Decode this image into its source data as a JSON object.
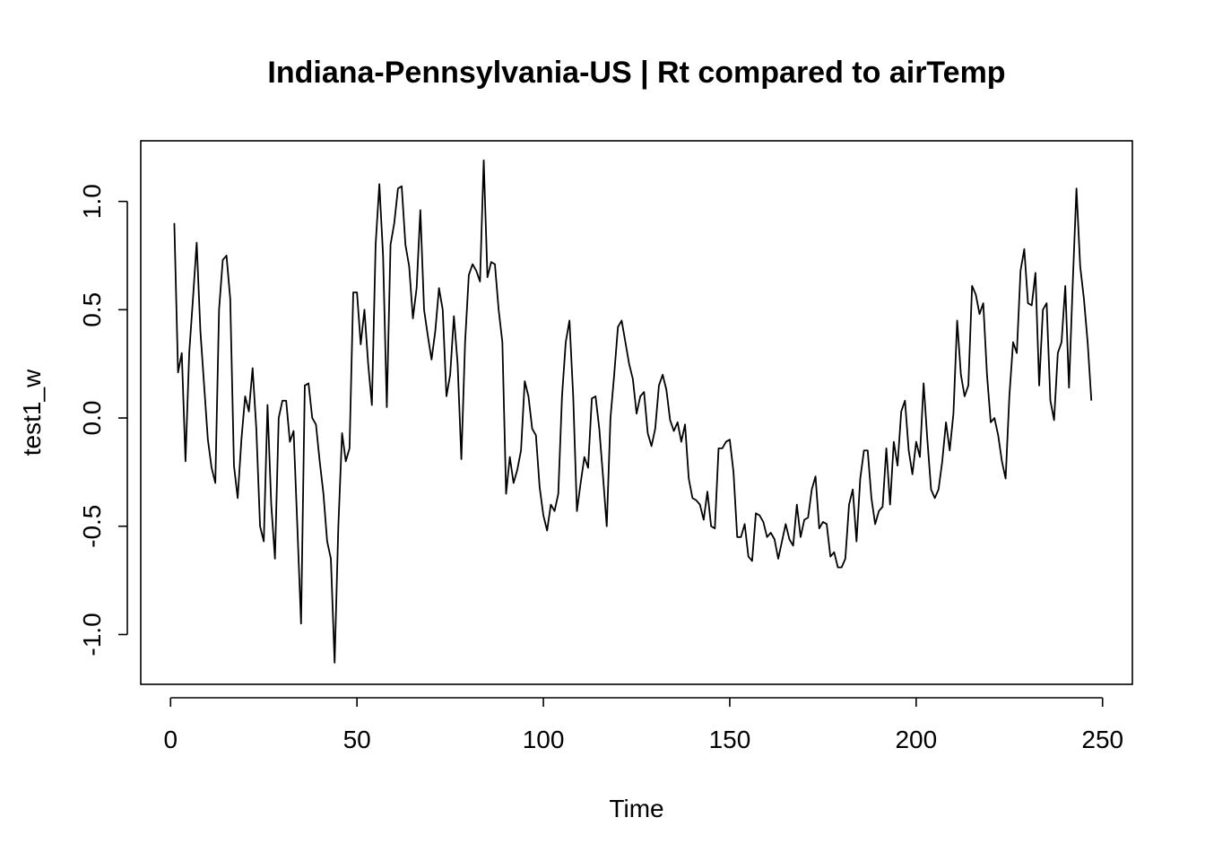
{
  "chart_data": {
    "type": "line",
    "title": "Indiana-Pennsylvania-US | Rt compared to airTemp",
    "xlabel": "Time",
    "ylabel": "test1_w",
    "xlim": [
      -8,
      258
    ],
    "ylim": [
      -1.23,
      1.28
    ],
    "x_ticks": [
      0,
      50,
      100,
      150,
      200,
      250
    ],
    "x_tick_labels": [
      "0",
      "50",
      "100",
      "150",
      "200",
      "250"
    ],
    "y_ticks": [
      -1.0,
      -0.5,
      0.0,
      0.5,
      1.0
    ],
    "y_tick_labels": [
      "-1.0",
      "-0.5",
      "0.0",
      "0.5",
      "1.0"
    ],
    "grid": false,
    "series": [
      {
        "x_start": 1,
        "x_step": 1,
        "values": [
          0.9,
          0.21,
          0.3,
          -0.2,
          0.3,
          0.55,
          0.81,
          0.4,
          0.15,
          -0.1,
          -0.23,
          -0.3,
          0.5,
          0.73,
          0.75,
          0.55,
          -0.22,
          -0.37,
          -0.1,
          0.1,
          0.03,
          0.23,
          -0.05,
          -0.5,
          -0.57,
          0.06,
          -0.4,
          -0.65,
          0.0,
          0.08,
          0.08,
          -0.11,
          -0.06,
          -0.5,
          -0.95,
          0.15,
          0.16,
          0.0,
          -0.03,
          -0.2,
          -0.35,
          -0.57,
          -0.65,
          -1.13,
          -0.5,
          -0.07,
          -0.2,
          -0.14,
          0.58,
          0.58,
          0.34,
          0.5,
          0.25,
          0.06,
          0.8,
          1.08,
          0.75,
          0.05,
          0.8,
          0.9,
          1.06,
          1.07,
          0.8,
          0.7,
          0.46,
          0.6,
          0.96,
          0.5,
          0.38,
          0.27,
          0.4,
          0.6,
          0.5,
          0.1,
          0.2,
          0.47,
          0.25,
          -0.19,
          0.35,
          0.66,
          0.71,
          0.68,
          0.63,
          1.19,
          0.65,
          0.72,
          0.71,
          0.5,
          0.35,
          -0.35,
          -0.18,
          -0.3,
          -0.24,
          -0.15,
          0.17,
          0.1,
          -0.05,
          -0.08,
          -0.32,
          -0.45,
          -0.52,
          -0.4,
          -0.43,
          -0.35,
          0.1,
          0.35,
          0.45,
          0.1,
          -0.43,
          -0.3,
          -0.18,
          -0.23,
          0.09,
          0.1,
          -0.05,
          -0.27,
          -0.5,
          0.0,
          0.2,
          0.42,
          0.45,
          0.35,
          0.25,
          0.18,
          0.02,
          0.1,
          0.12,
          -0.07,
          -0.13,
          -0.05,
          0.15,
          0.2,
          0.13,
          -0.01,
          -0.06,
          -0.02,
          -0.11,
          -0.03,
          -0.28,
          -0.37,
          -0.38,
          -0.4,
          -0.47,
          -0.34,
          -0.5,
          -0.51,
          -0.14,
          -0.14,
          -0.11,
          -0.1,
          -0.25,
          -0.55,
          -0.55,
          -0.49,
          -0.64,
          -0.66,
          -0.44,
          -0.45,
          -0.48,
          -0.55,
          -0.53,
          -0.56,
          -0.65,
          -0.57,
          -0.49,
          -0.56,
          -0.59,
          -0.4,
          -0.55,
          -0.47,
          -0.46,
          -0.33,
          -0.27,
          -0.51,
          -0.48,
          -0.49,
          -0.64,
          -0.62,
          -0.69,
          -0.69,
          -0.65,
          -0.4,
          -0.33,
          -0.57,
          -0.28,
          -0.15,
          -0.15,
          -0.37,
          -0.49,
          -0.43,
          -0.41,
          -0.14,
          -0.4,
          -0.11,
          -0.22,
          0.03,
          0.08,
          -0.15,
          -0.26,
          -0.11,
          -0.18,
          0.16,
          -0.1,
          -0.33,
          -0.37,
          -0.33,
          -0.2,
          -0.02,
          -0.15,
          0.02,
          0.45,
          0.2,
          0.1,
          0.15,
          0.61,
          0.57,
          0.48,
          0.53,
          0.2,
          -0.02,
          0.0,
          -0.08,
          -0.2,
          -0.28,
          0.1,
          0.35,
          0.3,
          0.68,
          0.78,
          0.53,
          0.52,
          0.67,
          0.15,
          0.5,
          0.53,
          0.08,
          -0.01,
          0.3,
          0.35,
          0.61,
          0.14,
          0.62,
          1.06,
          0.7,
          0.55,
          0.35,
          0.08
        ]
      }
    ]
  }
}
